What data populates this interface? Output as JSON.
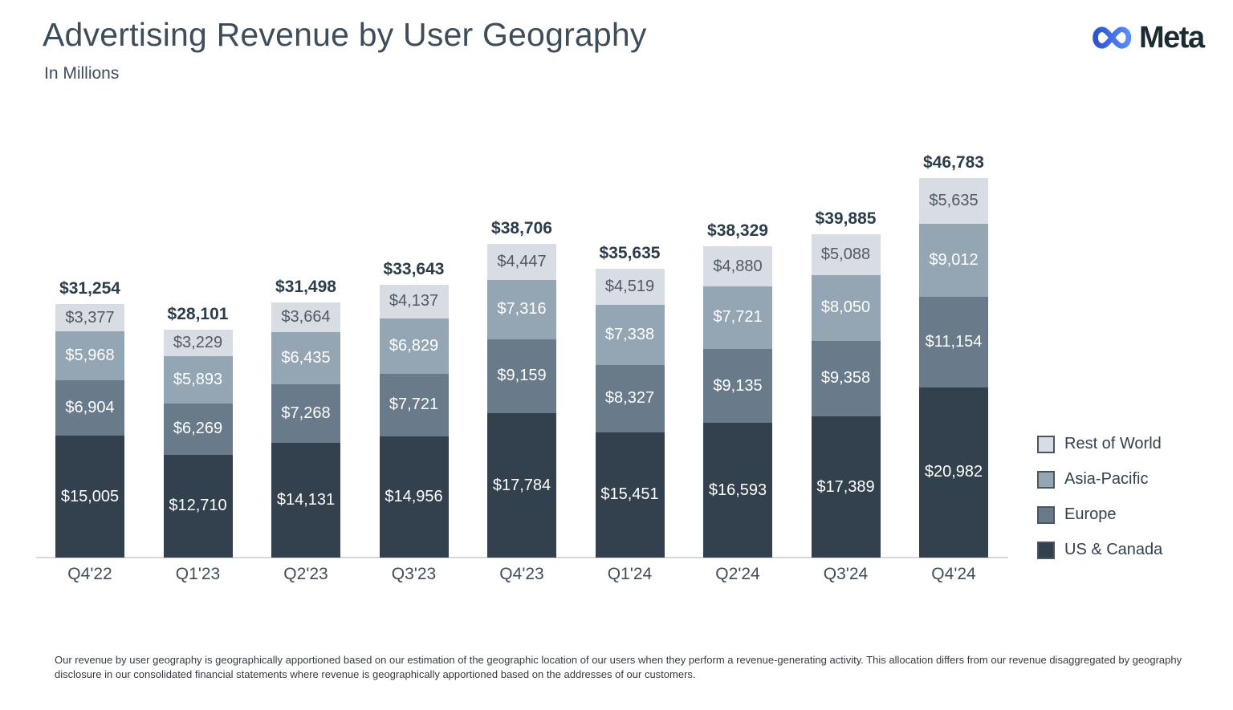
{
  "header": {
    "title": "Advertising Revenue by User Geography",
    "subtitle": "In Millions",
    "logo_text": "Meta"
  },
  "chart_data": {
    "type": "bar",
    "stacked": true,
    "title": "Advertising Revenue by User Geography",
    "subtitle": "In Millions",
    "unit": "USD millions",
    "grid": false,
    "legend_position": "right",
    "legend_order_top_to_bottom": [
      "Rest of World",
      "Asia-Pacific",
      "Europe",
      "US & Canada"
    ],
    "categories": [
      "Q4'22",
      "Q1'23",
      "Q2'23",
      "Q3'23",
      "Q4'23",
      "Q1'24",
      "Q2'24",
      "Q3'24",
      "Q4'24"
    ],
    "series": [
      {
        "name": "US & Canada",
        "color": "#33414E",
        "label_color": "#FFFFFF",
        "values": [
          15005,
          12710,
          14131,
          14956,
          17784,
          15451,
          16593,
          17389,
          20982
        ]
      },
      {
        "name": "Europe",
        "color": "#697A8B",
        "label_color": "#FFFFFF",
        "values": [
          6904,
          6269,
          7268,
          7721,
          9159,
          8327,
          9135,
          9358,
          11154
        ]
      },
      {
        "name": "Asia-Pacific",
        "color": "#94A5B4",
        "label_color": "#FFFFFF",
        "values": [
          5968,
          5893,
          6435,
          6829,
          7316,
          7338,
          7721,
          8050,
          9012
        ]
      },
      {
        "name": "Rest of World",
        "color": "#D8DDE3",
        "label_color": "#4F5A64",
        "values": [
          3377,
          3229,
          3664,
          4137,
          4447,
          4519,
          4880,
          5088,
          5635
        ]
      }
    ],
    "totals": [
      31254,
      28101,
      31498,
      33643,
      38706,
      35635,
      38329,
      39885,
      46783
    ],
    "value_prefix": "$"
  },
  "colors": {
    "axis_line": "#D6D8DA",
    "total_label": "#2B3C4B",
    "axis_label": "#3E4D5A",
    "legend_swatch_border": "#4A5560",
    "logo_gradient_start": "#2E52D0",
    "logo_gradient_end": "#5C8CF8",
    "logo_text": "#1C2B33"
  },
  "footnote": "Our revenue by user geography is geographically apportioned based on our estimation of the geographic location of our users when they perform a revenue-generating activity. This allocation differs from our revenue disaggregated by geography disclosure in our consolidated financial statements where revenue is geographically apportioned based on the addresses of our customers."
}
